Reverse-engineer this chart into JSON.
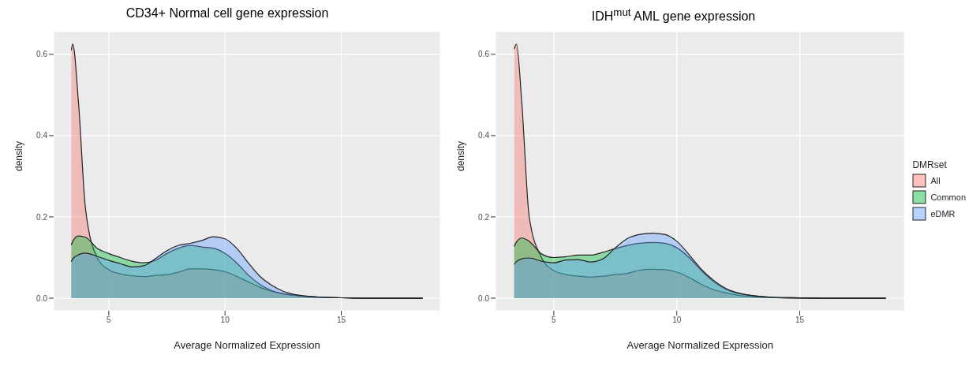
{
  "chart_data": [
    {
      "type": "area",
      "title": "CD34+ Normal cell gene expression",
      "xlabel": "Average Normalized Expression",
      "ylabel": "density",
      "x": [
        3.39,
        3.45,
        3.7,
        4,
        4.5,
        5,
        5.5,
        6,
        6.5,
        7,
        7.5,
        8,
        8.5,
        9,
        9.5,
        10,
        10.5,
        11,
        11.5,
        12,
        12.5,
        13,
        14,
        15,
        16,
        18.5
      ],
      "series": [
        {
          "color": "#f8766d",
          "values": [
            0.61,
            0.625,
            0.48,
            0.22,
            0.1,
            0.07,
            0.06,
            0.055,
            0.053,
            0.056,
            0.058,
            0.064,
            0.072,
            0.072,
            0.07,
            0.065,
            0.054,
            0.04,
            0.027,
            0.017,
            0.011,
            0.007,
            0.003,
            0.001,
            0,
            0
          ]
        },
        {
          "color": "#00ba38",
          "values": [
            0.131,
            0.14,
            0.153,
            0.15,
            0.123,
            0.11,
            0.1,
            0.091,
            0.087,
            0.093,
            0.11,
            0.123,
            0.13,
            0.126,
            0.123,
            0.11,
            0.087,
            0.057,
            0.034,
            0.019,
            0.011,
            0.007,
            0.002,
            0.001,
            0,
            0
          ]
        },
        {
          "color": "#619cff",
          "values": [
            0.09,
            0.097,
            0.107,
            0.111,
            0.103,
            0.093,
            0.085,
            0.077,
            0.08,
            0.097,
            0.117,
            0.13,
            0.135,
            0.142,
            0.151,
            0.146,
            0.123,
            0.087,
            0.054,
            0.032,
            0.017,
            0.009,
            0.003,
            0.001,
            0,
            0
          ]
        }
      ],
      "xlim": [
        2.63,
        19.26
      ],
      "xticks": [
        5,
        10,
        15
      ],
      "ylim": [
        -0.031,
        0.656
      ],
      "yticks": [
        {
          "value": 0,
          "label": "0.0"
        },
        0.2,
        0.4,
        0.6
      ],
      "grid": true
    },
    {
      "type": "area",
      "title": "IDH$^{mut}$ AML gene expression",
      "xlabel": "Average Normalized Expression",
      "ylabel": "density",
      "legend": "right",
      "legend_title": "DMRset",
      "x": [
        3.39,
        3.48,
        3.7,
        4,
        4.5,
        5,
        5.5,
        6,
        6.5,
        7,
        7.5,
        8,
        8.5,
        9,
        9.5,
        10,
        10.5,
        11,
        11.5,
        12,
        12.5,
        13,
        14,
        15,
        16,
        18.5
      ],
      "series": [
        {
          "name": "All",
          "color": "#f8766d",
          "values": [
            0.613,
            0.625,
            0.48,
            0.2,
            0.1,
            0.068,
            0.058,
            0.054,
            0.052,
            0.054,
            0.058,
            0.061,
            0.069,
            0.071,
            0.07,
            0.064,
            0.051,
            0.034,
            0.021,
            0.013,
            0.007,
            0.004,
            0.001,
            0,
            0,
            0
          ]
        },
        {
          "name": "Common",
          "color": "#00ba38",
          "values": [
            0.127,
            0.138,
            0.148,
            0.14,
            0.109,
            0.1,
            0.102,
            0.106,
            0.106,
            0.113,
            0.122,
            0.13,
            0.135,
            0.137,
            0.135,
            0.124,
            0.1,
            0.068,
            0.041,
            0.022,
            0.012,
            0.007,
            0.002,
            0.001,
            0,
            0
          ]
        },
        {
          "name": "eDMR",
          "color": "#619cff",
          "values": [
            0.083,
            0.09,
            0.097,
            0.099,
            0.091,
            0.087,
            0.094,
            0.095,
            0.089,
            0.097,
            0.124,
            0.147,
            0.157,
            0.16,
            0.157,
            0.14,
            0.107,
            0.071,
            0.044,
            0.024,
            0.013,
            0.007,
            0.002,
            0.001,
            0,
            0
          ]
        }
      ],
      "xlim": [
        2.63,
        19.26
      ],
      "xticks": [
        5,
        10,
        15
      ],
      "ylim": [
        -0.031,
        0.656
      ],
      "yticks": [
        {
          "value": 0,
          "label": "0.0"
        },
        0.2,
        0.4,
        0.6
      ],
      "grid": true
    }
  ]
}
